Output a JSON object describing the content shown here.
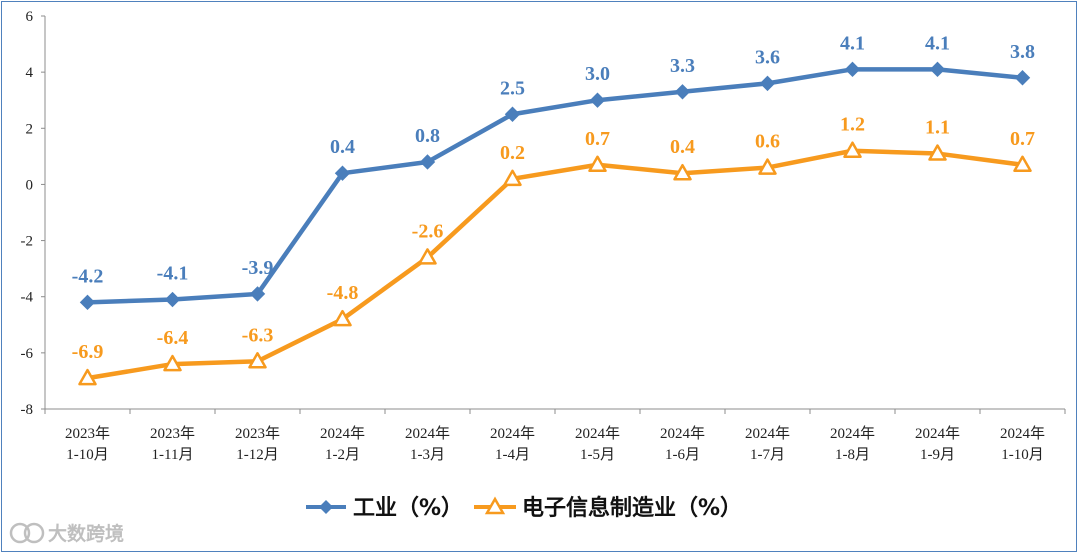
{
  "chart_data": {
    "type": "line",
    "categories": [
      [
        "2023年",
        "1-10月"
      ],
      [
        "2023年",
        "1-11月"
      ],
      [
        "2023年",
        "1-12月"
      ],
      [
        "2024年",
        "1-2月"
      ],
      [
        "2024年",
        "1-3月"
      ],
      [
        "2024年",
        "1-4月"
      ],
      [
        "2024年",
        "1-5月"
      ],
      [
        "2024年",
        "1-6月"
      ],
      [
        "2024年",
        "1-7月"
      ],
      [
        "2024年",
        "1-8月"
      ],
      [
        "2024年",
        "1-9月"
      ],
      [
        "2024年",
        "1-10月"
      ]
    ],
    "series": [
      {
        "name": "工业（%）",
        "color": "#4a7ebb",
        "marker": "diamond",
        "values": [
          -4.2,
          -4.1,
          -3.9,
          0.4,
          0.8,
          2.5,
          3.0,
          3.3,
          3.6,
          4.1,
          4.1,
          3.8
        ],
        "labels": [
          "-4.2",
          "-4.1",
          "-3.9",
          "0.4",
          "0.8",
          "2.5",
          "3.0",
          "3.3",
          "3.6",
          "4.1",
          "4.1",
          "3.8"
        ]
      },
      {
        "name": "电子信息制造业（%）",
        "color": "#f79a1e",
        "marker": "triangle",
        "values": [
          -6.9,
          -6.4,
          -6.3,
          -4.8,
          -2.6,
          0.2,
          0.7,
          0.4,
          0.6,
          1.2,
          1.1,
          0.7
        ],
        "labels": [
          "-6.9",
          "-6.4",
          "-6.3",
          "-4.8",
          "-2.6",
          "0.2",
          "0.7",
          "0.4",
          "0.6",
          "1.2",
          "1.1",
          "0.7"
        ]
      }
    ],
    "yticks": [
      6,
      4,
      2,
      0,
      -2,
      -4,
      -6,
      -8
    ],
    "ylim": [
      -8,
      6
    ],
    "legend": "bottom"
  },
  "watermark": "大数跨境"
}
